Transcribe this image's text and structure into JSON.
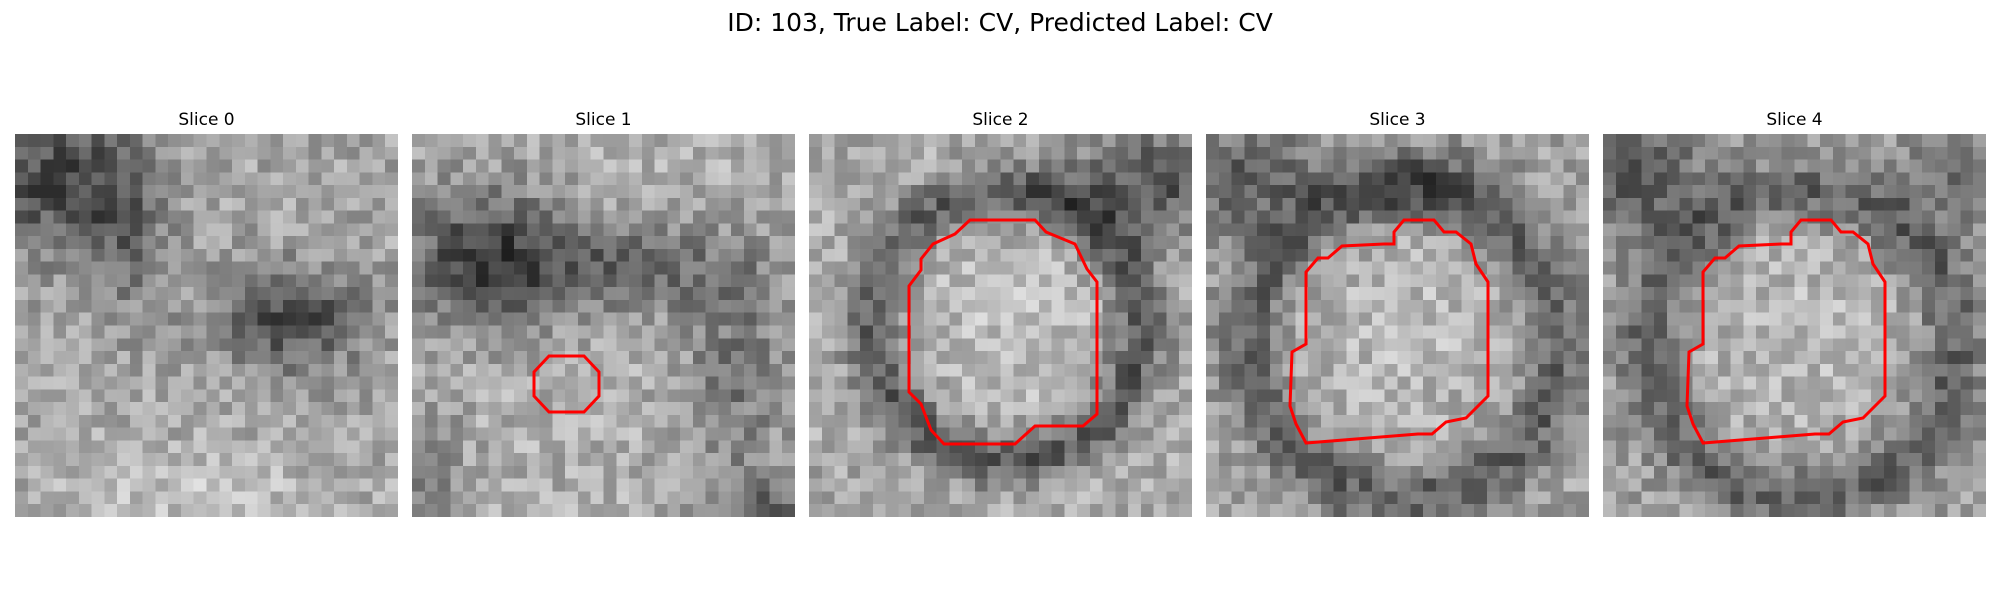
{
  "figure": {
    "title": "ID: 103, True Label: CV, Predicted Label: CV",
    "contour_color": "#ff0000"
  },
  "slices": [
    {
      "title": "Slice 0",
      "has_contour": false
    },
    {
      "title": "Slice 1",
      "has_contour": true
    },
    {
      "title": "Slice 2",
      "has_contour": true
    },
    {
      "title": "Slice 3",
      "has_contour": true
    },
    {
      "title": "Slice 4",
      "has_contour": true
    }
  ]
}
